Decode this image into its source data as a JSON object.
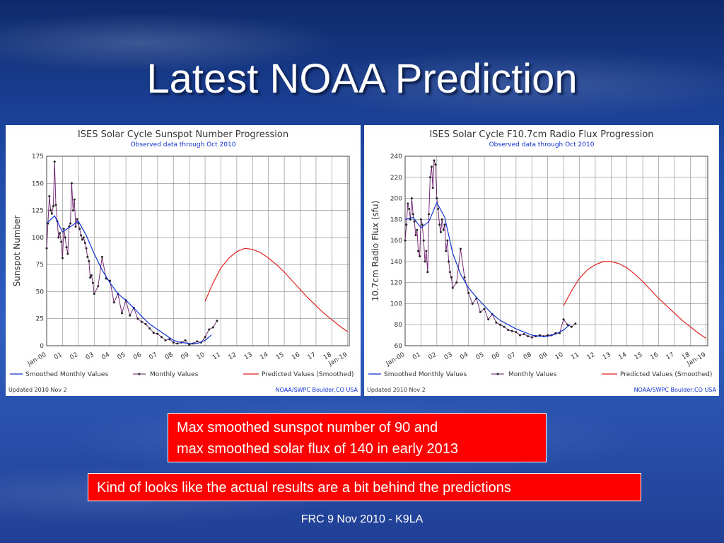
{
  "slide": {
    "title": "Latest NOAA Prediction",
    "callout_1_line_1": "Max smoothed sunspot number of 90 and",
    "callout_1_line_2": "max smoothed solar flux of 140 in early 2013",
    "callout_2": "Kind of looks like the actual results are a bit behind the predictions",
    "footer": "FRC 9 Nov 2010 - K9LA"
  },
  "colors": {
    "smoothed": "#1030d0",
    "monthly": "#6a1a6a",
    "predicted": "#e02020",
    "callout_bg": "#ff0000"
  },
  "chart_data": [
    {
      "type": "line",
      "title": "ISES Solar Cycle Sunspot Number Progression",
      "subtitle": "Observed data through Oct 2010",
      "ylabel": "Sunspot Number",
      "ylim": [
        0,
        175
      ],
      "yticks": [
        0,
        25,
        50,
        75,
        100,
        125,
        150,
        175
      ],
      "xlim": [
        0,
        19.1
      ],
      "xtick_labels": [
        "Jan-00",
        "01",
        "02",
        "03",
        "04",
        "05",
        "06",
        "07",
        "08",
        "09",
        "10",
        "11",
        "12",
        "13",
        "14",
        "15",
        "16",
        "17",
        "18",
        "Jan-19"
      ],
      "grid": true,
      "legend": [
        "Smoothed Monthly Values",
        "Monthly Values",
        "Predicted Values (Smoothed)"
      ],
      "updated": "Updated 2010 Nov  2",
      "source": "NOAA/SWPC Boulder,CO USA",
      "series": [
        {
          "name": "Monthly Values",
          "x": [
            0.0,
            0.08,
            0.17,
            0.25,
            0.33,
            0.42,
            0.5,
            0.58,
            0.67,
            0.75,
            0.83,
            0.92,
            1.0,
            1.08,
            1.17,
            1.25,
            1.33,
            1.42,
            1.5,
            1.58,
            1.67,
            1.75,
            1.83,
            1.92,
            2.0,
            2.08,
            2.17,
            2.25,
            2.33,
            2.42,
            2.5,
            2.58,
            2.67,
            2.75,
            2.83,
            2.92,
            3.0,
            3.25,
            3.5,
            3.75,
            4.0,
            4.25,
            4.5,
            4.75,
            5.0,
            5.25,
            5.5,
            5.75,
            6.0,
            6.25,
            6.5,
            6.75,
            7.0,
            7.25,
            7.5,
            7.75,
            8.0,
            8.25,
            8.5,
            8.75,
            9.0,
            9.25,
            9.5,
            9.75,
            10.0,
            10.25,
            10.5,
            10.75
          ],
          "values": [
            90,
            113,
            138,
            125,
            122,
            129,
            170,
            130,
            115,
            100,
            104,
            96,
            81,
            108,
            100,
            91,
            85,
            110,
            113,
            150,
            125,
            135,
            110,
            117,
            113,
            108,
            102,
            98,
            100,
            95,
            90,
            82,
            78,
            63,
            65,
            58,
            48,
            55,
            82,
            62,
            60,
            40,
            48,
            30,
            42,
            28,
            35,
            25,
            22,
            20,
            16,
            12,
            11,
            8,
            5,
            6,
            3,
            2,
            3,
            5,
            1,
            2,
            4,
            3,
            8,
            15,
            17,
            23
          ]
        },
        {
          "name": "Smoothed Monthly Values",
          "x": [
            0,
            0.5,
            1.0,
            1.5,
            2.0,
            2.5,
            3.0,
            3.5,
            4.0,
            4.5,
            5.0,
            5.5,
            6.0,
            6.5,
            7.0,
            7.5,
            8.0,
            8.5,
            9.0,
            9.5,
            10.0,
            10.4
          ],
          "values": [
            113,
            120,
            105,
            110,
            115,
            102,
            85,
            70,
            58,
            48,
            42,
            35,
            27,
            20,
            15,
            10,
            5,
            3,
            2,
            2,
            5,
            10
          ]
        },
        {
          "name": "Predicted Values (Smoothed)",
          "x": [
            10.0,
            10.5,
            11.0,
            11.5,
            12.0,
            12.5,
            13.0,
            13.5,
            14.0,
            14.5,
            15.0,
            15.5,
            16.0,
            16.5,
            17.0,
            17.5,
            18.0,
            18.5,
            19.0
          ],
          "values": [
            41,
            58,
            72,
            81,
            87,
            90,
            89,
            86,
            81,
            75,
            68,
            60,
            52,
            44,
            37,
            30,
            24,
            18,
            13
          ]
        }
      ]
    },
    {
      "type": "line",
      "title": "ISES Solar Cycle F10.7cm Radio Flux Progression",
      "subtitle": "Observed data through Oct 2010",
      "ylabel": "10.7cm Radio Flux (sfu)",
      "ylim": [
        60,
        240
      ],
      "yticks": [
        60,
        80,
        100,
        120,
        140,
        160,
        180,
        200,
        220,
        240
      ],
      "xlim": [
        0,
        19.1
      ],
      "xtick_labels": [
        "Jan-00",
        "01",
        "02",
        "03",
        "04",
        "05",
        "06",
        "07",
        "08",
        "09",
        "10",
        "11",
        "12",
        "13",
        "14",
        "15",
        "16",
        "17",
        "18",
        "Jan-19"
      ],
      "grid": true,
      "legend": [
        "Smoothed Monthly Values",
        "Monthly Values",
        "Predicted Values (Smoothed)"
      ],
      "updated": "Updated 2010 Nov  2",
      "source": "NOAA/SWPC Boulder,CO USA",
      "series": [
        {
          "name": "Monthly Values",
          "x": [
            0.0,
            0.08,
            0.17,
            0.25,
            0.33,
            0.42,
            0.5,
            0.58,
            0.67,
            0.75,
            0.83,
            0.92,
            1.0,
            1.08,
            1.17,
            1.25,
            1.33,
            1.42,
            1.5,
            1.58,
            1.67,
            1.75,
            1.83,
            1.92,
            2.0,
            2.08,
            2.17,
            2.25,
            2.33,
            2.42,
            2.5,
            2.58,
            2.67,
            2.75,
            2.83,
            2.92,
            3.0,
            3.25,
            3.5,
            3.75,
            4.0,
            4.25,
            4.5,
            4.75,
            5.0,
            5.25,
            5.5,
            5.75,
            6.0,
            6.25,
            6.5,
            6.75,
            7.0,
            7.25,
            7.5,
            7.75,
            8.0,
            8.25,
            8.5,
            8.75,
            9.0,
            9.25,
            9.5,
            9.75,
            10.0,
            10.25,
            10.5,
            10.75
          ],
          "values": [
            160,
            175,
            195,
            190,
            180,
            200,
            185,
            178,
            165,
            170,
            150,
            145,
            180,
            175,
            160,
            140,
            150,
            130,
            185,
            220,
            230,
            210,
            236,
            232,
            200,
            190,
            175,
            168,
            180,
            170,
            175,
            150,
            160,
            140,
            130,
            125,
            115,
            120,
            152,
            125,
            110,
            100,
            105,
            92,
            95,
            85,
            90,
            82,
            80,
            78,
            75,
            74,
            73,
            70,
            71,
            69,
            68,
            69,
            70,
            69,
            70,
            70,
            72,
            72,
            85,
            80,
            78,
            81
          ]
        },
        {
          "name": "Smoothed Monthly Values",
          "x": [
            0,
            0.5,
            1.0,
            1.5,
            2.0,
            2.5,
            3.0,
            3.5,
            4.0,
            4.5,
            5.0,
            5.5,
            6.0,
            6.5,
            7.0,
            7.5,
            8.0,
            8.5,
            9.0,
            9.5,
            10.0,
            10.4
          ],
          "values": [
            180,
            182,
            172,
            178,
            196,
            182,
            148,
            128,
            115,
            106,
            98,
            90,
            84,
            80,
            76,
            73,
            70,
            69,
            69,
            71,
            75,
            80
          ]
        },
        {
          "name": "Predicted Values (Smoothed)",
          "x": [
            10.0,
            10.5,
            11.0,
            11.5,
            12.0,
            12.5,
            13.0,
            13.5,
            14.0,
            14.5,
            15.0,
            15.5,
            16.0,
            16.5,
            17.0,
            17.5,
            18.0,
            18.5,
            19.0
          ],
          "values": [
            98,
            112,
            124,
            132,
            137,
            140,
            140,
            138,
            134,
            128,
            121,
            113,
            105,
            98,
            91,
            84,
            78,
            72,
            67
          ]
        }
      ]
    }
  ]
}
